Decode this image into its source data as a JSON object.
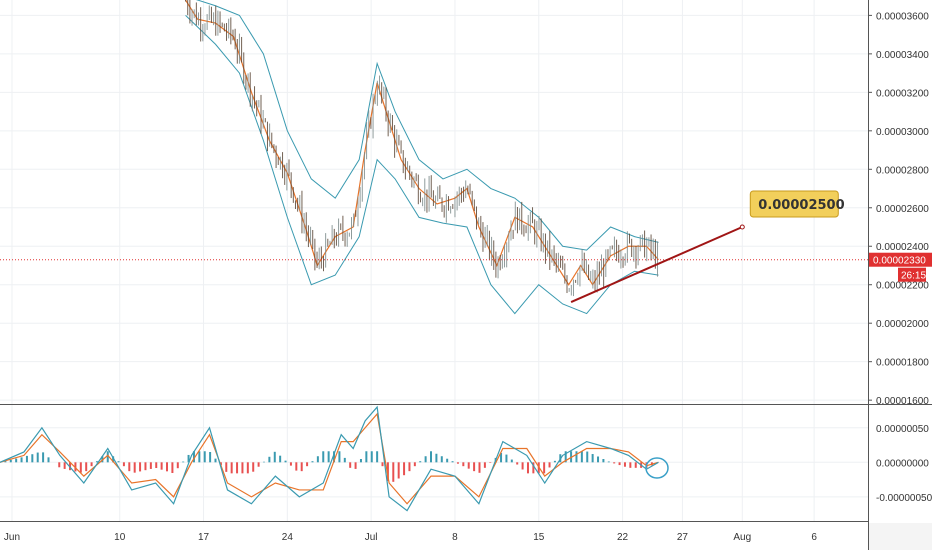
{
  "chart_data": [
    {
      "type": "candlestick",
      "ylim": [
        1.58e-05,
        3.68e-05
      ],
      "y_ticks": [
        "0.00003600",
        "0.00003400",
        "0.00003200",
        "0.00003000",
        "0.00002800",
        "0.00002600",
        "0.00002400",
        "0.00002200",
        "0.00002000",
        "0.00001800",
        "0.00001600"
      ],
      "y_tick_values": [
        3.6e-05,
        3.4e-05,
        3.2e-05,
        3e-05,
        2.8e-05,
        2.6e-05,
        2.4e-05,
        2.2e-05,
        2e-05,
        1.8e-05,
        1.6e-05
      ],
      "x_ticks": [
        "Jun",
        "10",
        "17",
        "24",
        "Jul",
        "8",
        "15",
        "22",
        "27",
        "Aug",
        "6"
      ],
      "x_tick_days": [
        1,
        10,
        17,
        24,
        31,
        38,
        45,
        52,
        57,
        62,
        68
      ],
      "last_price": {
        "label": "0.00002330",
        "value": 2.33e-05,
        "countdown": "26:15"
      },
      "price_path": [
        [
          15.5,
          3.68e-05
        ],
        [
          16.5,
          3.58e-05
        ],
        [
          18.0,
          3.56e-05
        ],
        [
          19.5,
          3.49e-05
        ],
        [
          21.0,
          3.2e-05
        ],
        [
          22.5,
          2.95e-05
        ],
        [
          24.0,
          2.78e-05
        ],
        [
          25.5,
          2.5e-05
        ],
        [
          26.5,
          2.3e-05
        ],
        [
          28.0,
          2.45e-05
        ],
        [
          29.5,
          2.5e-05
        ],
        [
          30.5,
          2.9e-05
        ],
        [
          31.5,
          3.25e-05
        ],
        [
          32.5,
          3.05e-05
        ],
        [
          33.5,
          2.85e-05
        ],
        [
          35.0,
          2.7e-05
        ],
        [
          36.5,
          2.62e-05
        ],
        [
          38.0,
          2.65e-05
        ],
        [
          39.0,
          2.7e-05
        ],
        [
          40.0,
          2.5e-05
        ],
        [
          41.5,
          2.3e-05
        ],
        [
          43.0,
          2.55e-05
        ],
        [
          44.5,
          2.5e-05
        ],
        [
          46.0,
          2.35e-05
        ],
        [
          47.5,
          2.2e-05
        ],
        [
          48.5,
          2.3e-05
        ],
        [
          49.5,
          2.2e-05
        ],
        [
          51.0,
          2.35e-05
        ],
        [
          52.5,
          2.4e-05
        ],
        [
          54.0,
          2.4e-05
        ],
        [
          55.0,
          2.33e-05
        ]
      ],
      "upper_band": [
        [
          15.5,
          3.7e-05
        ],
        [
          18.0,
          3.65e-05
        ],
        [
          20.0,
          3.6e-05
        ],
        [
          22.0,
          3.4e-05
        ],
        [
          24.0,
          3e-05
        ],
        [
          26.0,
          2.75e-05
        ],
        [
          28.0,
          2.65e-05
        ],
        [
          30.0,
          2.85e-05
        ],
        [
          31.5,
          3.35e-05
        ],
        [
          33.0,
          3.1e-05
        ],
        [
          35.0,
          2.85e-05
        ],
        [
          37.0,
          2.75e-05
        ],
        [
          39.0,
          2.8e-05
        ],
        [
          41.0,
          2.7e-05
        ],
        [
          43.0,
          2.65e-05
        ],
        [
          45.0,
          2.55e-05
        ],
        [
          47.0,
          2.4e-05
        ],
        [
          49.0,
          2.38e-05
        ],
        [
          51.0,
          2.5e-05
        ],
        [
          53.0,
          2.45e-05
        ],
        [
          55.0,
          2.42e-05
        ]
      ],
      "lower_band": [
        [
          15.5,
          3.6e-05
        ],
        [
          18.0,
          3.45e-05
        ],
        [
          20.0,
          3.3e-05
        ],
        [
          22.0,
          2.95e-05
        ],
        [
          24.0,
          2.55e-05
        ],
        [
          26.0,
          2.2e-05
        ],
        [
          28.0,
          2.25e-05
        ],
        [
          30.0,
          2.45e-05
        ],
        [
          31.5,
          2.85e-05
        ],
        [
          33.0,
          2.75e-05
        ],
        [
          35.0,
          2.55e-05
        ],
        [
          37.0,
          2.52e-05
        ],
        [
          39.0,
          2.5e-05
        ],
        [
          41.0,
          2.2e-05
        ],
        [
          43.0,
          2.05e-05
        ],
        [
          45.0,
          2.2e-05
        ],
        [
          47.0,
          2.1e-05
        ],
        [
          49.0,
          2.05e-05
        ],
        [
          51.0,
          2.2e-05
        ],
        [
          53.0,
          2.27e-05
        ],
        [
          55.0,
          2.25e-05
        ]
      ],
      "trendline": {
        "from": [
          47.7,
          2.11e-05
        ],
        "to": [
          62.0,
          2.5e-05
        ],
        "color": "#a01515"
      },
      "callout": {
        "text": "0.00002500",
        "value": 2.5e-05
      },
      "colors": {
        "price": "#7a5a3a",
        "ma": "#e8742a",
        "band": "#3a9ab0",
        "last_price": "#e03030",
        "callout_bg": "#f2cf5b"
      }
    },
    {
      "type": "oscillator",
      "ylim": [
        -8.5e-07,
        8.3e-07
      ],
      "y_ticks": [
        "0.00000050",
        "0.00000000",
        "-0.00000050"
      ],
      "y_tick_values": [
        5e-07,
        0,
        -5e-07
      ],
      "fast_line": [
        [
          0,
          0.0
        ],
        [
          2,
          1.5e-07
        ],
        [
          3.5,
          5e-07
        ],
        [
          5,
          1e-07
        ],
        [
          7,
          -3e-07
        ],
        [
          9,
          2e-07
        ],
        [
          11,
          -4e-07
        ],
        [
          13,
          -3e-07
        ],
        [
          14.5,
          -6e-07
        ],
        [
          16,
          1e-07
        ],
        [
          17.5,
          5e-07
        ],
        [
          19,
          -4e-07
        ],
        [
          21,
          -6e-07
        ],
        [
          23,
          -2e-07
        ],
        [
          25,
          -5e-07
        ],
        [
          27,
          -3e-07
        ],
        [
          28.5,
          4e-07
        ],
        [
          29.5,
          2e-07
        ],
        [
          30.5,
          6e-07
        ],
        [
          31.5,
          8e-07
        ],
        [
          32.5,
          -5e-07
        ],
        [
          34,
          -7e-07
        ],
        [
          36,
          -1e-07
        ],
        [
          38,
          -2e-07
        ],
        [
          40,
          -6e-07
        ],
        [
          42,
          3e-07
        ],
        [
          44,
          1e-07
        ],
        [
          45.5,
          -3e-07
        ],
        [
          47,
          1e-07
        ],
        [
          49,
          3e-07
        ],
        [
          51,
          2e-07
        ],
        [
          52.5,
          1e-07
        ],
        [
          54,
          -1e-07
        ],
        [
          55,
          0.0
        ]
      ],
      "slow_line": [
        [
          0,
          0.0
        ],
        [
          2,
          1e-07
        ],
        [
          3.5,
          4e-07
        ],
        [
          5,
          1.5e-07
        ],
        [
          7,
          -2e-07
        ],
        [
          9,
          1e-07
        ],
        [
          11,
          -3e-07
        ],
        [
          13,
          -2.5e-07
        ],
        [
          14.5,
          -5e-07
        ],
        [
          16,
          0.0
        ],
        [
          17.5,
          4e-07
        ],
        [
          19,
          -3e-07
        ],
        [
          21,
          -5e-07
        ],
        [
          23,
          -3e-07
        ],
        [
          25,
          -4e-07
        ],
        [
          27,
          -4e-07
        ],
        [
          28.5,
          3e-07
        ],
        [
          29.5,
          3e-07
        ],
        [
          30.5,
          5e-07
        ],
        [
          31.5,
          7e-07
        ],
        [
          32.5,
          -3e-07
        ],
        [
          34,
          -6e-07
        ],
        [
          36,
          -2e-07
        ],
        [
          38,
          -2e-07
        ],
        [
          40,
          -5e-07
        ],
        [
          42,
          2e-07
        ],
        [
          44,
          2e-07
        ],
        [
          45.5,
          -2e-07
        ],
        [
          47,
          0.0
        ],
        [
          49,
          2e-07
        ],
        [
          51,
          2e-07
        ],
        [
          52.5,
          1.5e-07
        ],
        [
          54,
          -5e-08
        ],
        [
          55,
          0.0
        ]
      ],
      "colors": {
        "fast": "#3a9ab0",
        "slow": "#e8742a",
        "hist_up": "#3a9ab0",
        "hist_down": "#e85050"
      }
    }
  ]
}
